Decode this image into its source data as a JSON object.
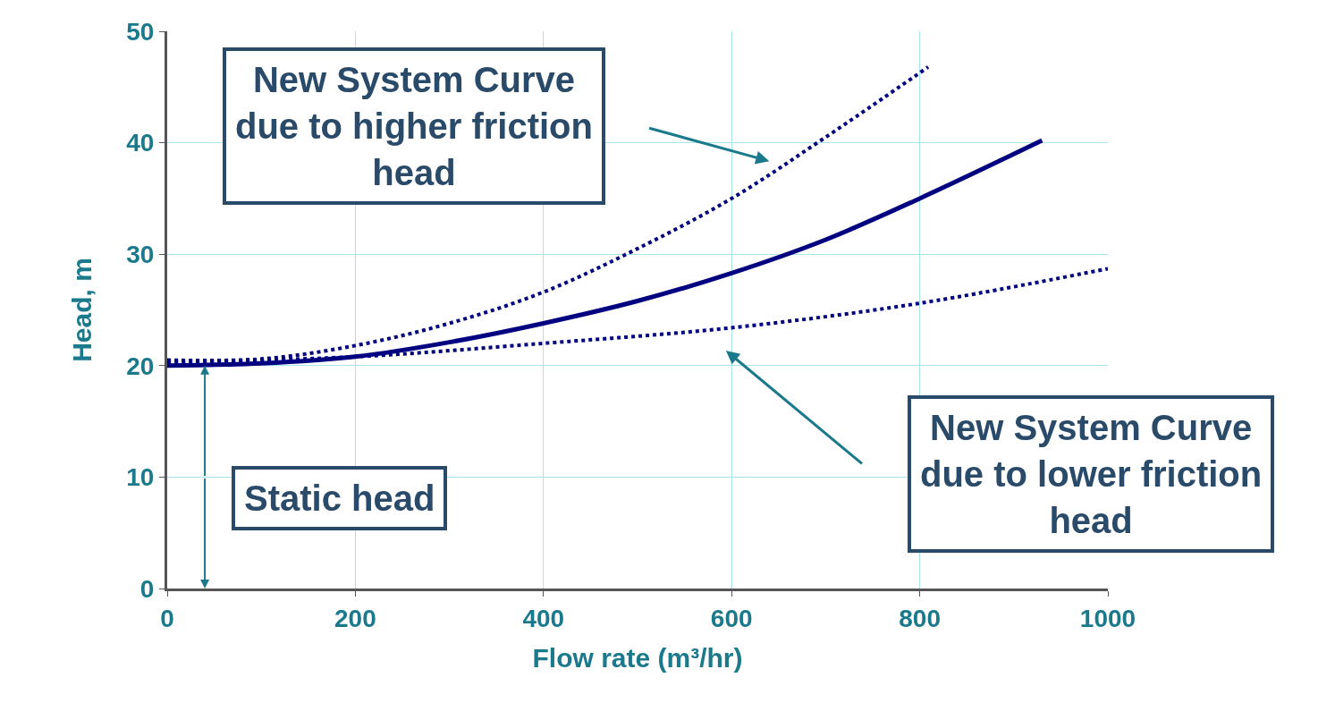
{
  "chart_data": {
    "type": "line",
    "xlabel": "Flow rate (m³/hr)",
    "ylabel": "Head, m",
    "xlim": [
      0,
      1000
    ],
    "xticks": [
      0,
      200,
      400,
      600,
      800,
      1000
    ],
    "ylim": [
      0,
      50
    ],
    "yticks": [
      0,
      10,
      20,
      30,
      40,
      50
    ],
    "grid": true,
    "series": [
      {
        "color": "#000080",
        "line_style": "solid",
        "x": [
          0,
          100,
          200,
          300,
          400,
          500,
          600,
          700,
          800,
          930
        ],
        "values": [
          20,
          20.2,
          20.8,
          22.1,
          23.8,
          25.8,
          28.3,
          31.3,
          35,
          40.2
        ]
      },
      {
        "color": "#000080",
        "line_style": "dotted",
        "x": [
          0,
          100,
          200,
          300,
          400,
          500,
          600,
          700,
          809
        ],
        "values": [
          20.5,
          20.6,
          21.8,
          23.8,
          26.6,
          30.5,
          35,
          40.5,
          46.8
        ]
      },
      {
        "color": "#000080",
        "line_style": "dotted",
        "x": [
          0,
          200,
          400,
          600,
          800,
          1000
        ],
        "values": [
          20.3,
          20.8,
          22,
          23.4,
          25.6,
          28.7
        ]
      }
    ],
    "annotations": [
      "New System Curve\ndue to higher friction\nhead",
      "New System Curve\ndue to lower friction\nhead",
      {
        "text": "Static head",
        "x": 40,
        "y": 20
      }
    ]
  }
}
